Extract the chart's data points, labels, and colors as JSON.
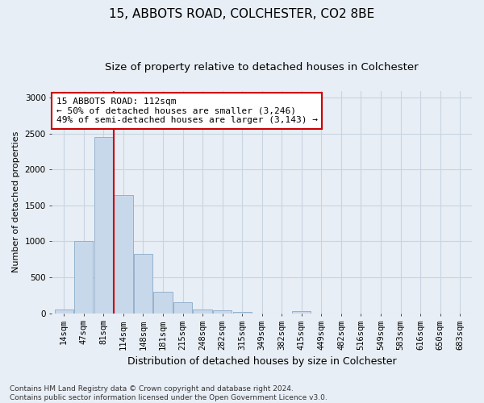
{
  "title": "15, ABBOTS ROAD, COLCHESTER, CO2 8BE",
  "subtitle": "Size of property relative to detached houses in Colchester",
  "xlabel": "Distribution of detached houses by size in Colchester",
  "ylabel": "Number of detached properties",
  "bar_values": [
    55,
    1000,
    2450,
    1650,
    830,
    300,
    155,
    55,
    35,
    20,
    0,
    0,
    30,
    0,
    0,
    0,
    0,
    0,
    0,
    0,
    0
  ],
  "bar_labels": [
    "14sqm",
    "47sqm",
    "81sqm",
    "114sqm",
    "148sqm",
    "181sqm",
    "215sqm",
    "248sqm",
    "282sqm",
    "315sqm",
    "349sqm",
    "382sqm",
    "415sqm",
    "449sqm",
    "482sqm",
    "516sqm",
    "549sqm",
    "583sqm",
    "616sqm",
    "650sqm",
    "683sqm"
  ],
  "bar_color": "#c8d8eb",
  "bar_edge_color": "#8aaac8",
  "grid_color": "#c8d4e0",
  "bg_color": "#e8eef5",
  "vline_color": "#cc0000",
  "annotation_text": "15 ABBOTS ROAD: 112sqm\n← 50% of detached houses are smaller (3,246)\n49% of semi-detached houses are larger (3,143) →",
  "annotation_box_color": "#ffffff",
  "annotation_box_edge": "#cc0000",
  "ylim": [
    0,
    3100
  ],
  "yticks": [
    0,
    500,
    1000,
    1500,
    2000,
    2500,
    3000
  ],
  "footnote": "Contains HM Land Registry data © Crown copyright and database right 2024.\nContains public sector information licensed under the Open Government Licence v3.0.",
  "title_fontsize": 11,
  "subtitle_fontsize": 9.5,
  "xlabel_fontsize": 9,
  "ylabel_fontsize": 8,
  "tick_fontsize": 7.5,
  "annot_fontsize": 8,
  "footnote_fontsize": 6.5
}
